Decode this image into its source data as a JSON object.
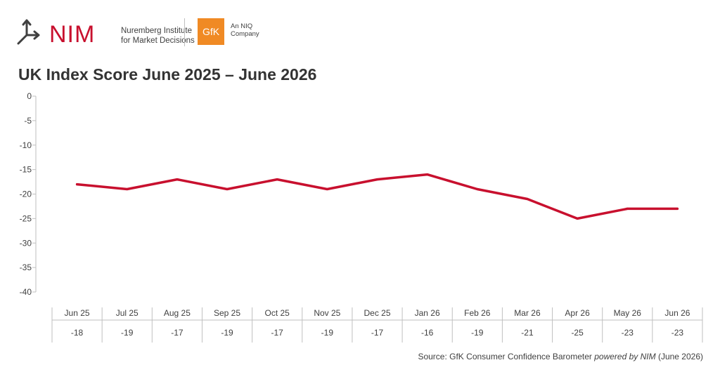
{
  "header": {
    "nim_wordmark": "NIM",
    "nim_subtitle_line1": "Nuremberg Institute",
    "nim_subtitle_line2": "for Market Decisions",
    "gfk_logo_text": "GfK",
    "gfk_subtitle_line1": "An NIQ",
    "gfk_subtitle_line2": "Company"
  },
  "footer": {
    "source_prefix": "Source: GfK Consumer Confidence Barometer ",
    "source_emphasis": "powered by NIM",
    "source_suffix": " (June 2026)"
  },
  "colors": {
    "line": "#c8102e",
    "axis": "#bfbfbf",
    "text": "#404040",
    "gfk_orange": "#f08a24"
  },
  "chart_data": {
    "type": "line",
    "title": "UK Index Score June 2025 – June 2026",
    "xlabel": "",
    "ylabel": "",
    "ylim": [
      -40,
      0
    ],
    "yticks": [
      0,
      -5,
      -10,
      -15,
      -20,
      -25,
      -30,
      -35,
      -40
    ],
    "grid": false,
    "categories": [
      "Jun 25",
      "Jul 25",
      "Aug 25",
      "Sep 25",
      "Oct 25",
      "Nov 25",
      "Dec 25",
      "Jan 26",
      "Feb 26",
      "Mar 26",
      "Apr 26",
      "May 26",
      "Jun 26"
    ],
    "series": [
      {
        "values": [
          -18,
          -19,
          -17,
          -19,
          -17,
          -19,
          -17,
          -16,
          -19,
          -21,
          -25,
          -23,
          -23
        ]
      }
    ],
    "table_row": [
      "-18",
      "-19",
      "-17",
      "-19",
      "-17",
      "-19",
      "-17",
      "-16",
      "-19",
      "-21",
      "-25",
      "-23",
      "-23"
    ]
  }
}
